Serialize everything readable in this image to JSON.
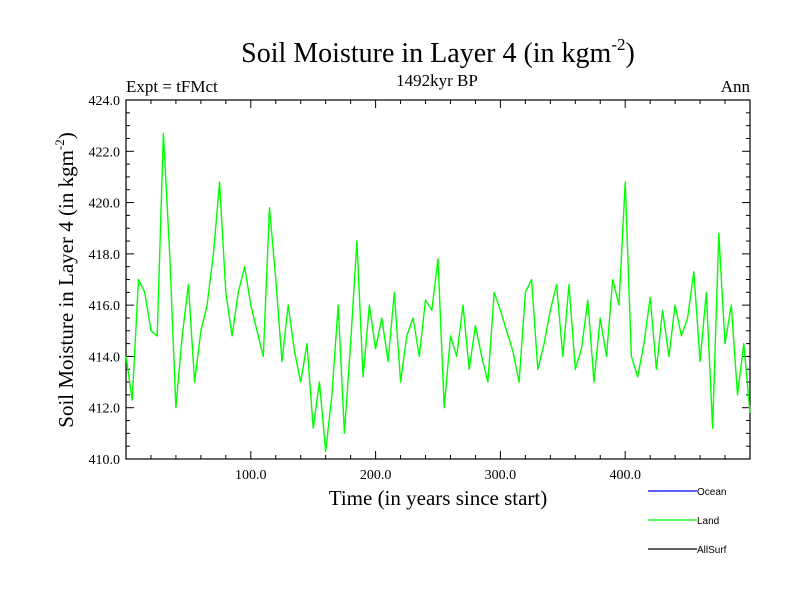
{
  "chart_data": {
    "type": "line",
    "title_main": "Soil Moisture in Layer 4 (in kgm",
    "title_exp": "-2",
    "title_close": ")",
    "subtitle": "1492kyr BP",
    "left_label": "Expt = tFMct",
    "right_label": "Ann",
    "xlabel": "Time (in years since start)",
    "ylabel_main": "Soil Moisture in Layer 4 (in kgm",
    "ylabel_exp": "-2",
    "ylabel_close": ")",
    "xlim": [
      0,
      500
    ],
    "ylim": [
      410,
      424
    ],
    "x_ticks": [
      100,
      200,
      300,
      400
    ],
    "x_tick_labels": [
      "100.0",
      "200.0",
      "300.0",
      "400.0"
    ],
    "y_ticks": [
      410,
      412,
      414,
      416,
      418,
      420,
      422,
      424
    ],
    "y_tick_labels": [
      "410.0",
      "412.0",
      "414.0",
      "416.0",
      "418.0",
      "420.0",
      "422.0",
      "424.0"
    ],
    "legend": [
      {
        "name": "Ocean",
        "color": "#0000ff"
      },
      {
        "name": "Land",
        "color": "#00ff00"
      },
      {
        "name": "AllSurf",
        "color": "#000000"
      }
    ],
    "series": [
      {
        "name": "Land",
        "color": "#00ff00",
        "x": [
          0,
          5,
          10,
          15,
          20,
          25,
          30,
          35,
          40,
          45,
          50,
          55,
          60,
          65,
          70,
          75,
          80,
          85,
          90,
          95,
          100,
          105,
          110,
          115,
          120,
          125,
          130,
          135,
          140,
          145,
          150,
          155,
          160,
          165,
          170,
          175,
          180,
          185,
          190,
          195,
          200,
          205,
          210,
          215,
          220,
          225,
          230,
          235,
          240,
          245,
          250,
          255,
          260,
          265,
          270,
          275,
          280,
          285,
          290,
          295,
          300,
          305,
          310,
          315,
          320,
          325,
          330,
          335,
          340,
          345,
          350,
          355,
          360,
          365,
          370,
          375,
          380,
          385,
          390,
          395,
          400,
          405,
          410,
          415,
          420,
          425,
          430,
          435,
          440,
          445,
          450,
          455,
          460,
          465,
          470,
          475,
          480,
          485,
          490,
          495,
          500
        ],
        "values": [
          414.0,
          412.3,
          417.0,
          416.5,
          415.0,
          414.8,
          422.7,
          418.0,
          412.0,
          414.8,
          416.8,
          413.0,
          415.0,
          416.0,
          418.0,
          420.8,
          416.5,
          414.8,
          416.5,
          417.5,
          416.0,
          415.0,
          414.0,
          419.8,
          417.0,
          413.8,
          416.0,
          414.2,
          413.0,
          414.5,
          411.2,
          413.0,
          410.3,
          412.5,
          416.0,
          411.0,
          414.5,
          418.5,
          413.2,
          416.0,
          414.3,
          415.5,
          413.8,
          416.5,
          413.0,
          414.8,
          415.5,
          414.0,
          416.2,
          415.8,
          417.8,
          412.0,
          414.8,
          414.0,
          416.0,
          413.5,
          415.2,
          414.0,
          413.0,
          416.5,
          415.8,
          415.0,
          414.2,
          413.0,
          416.5,
          417.0,
          413.5,
          414.5,
          415.8,
          416.8,
          414.0,
          416.8,
          413.5,
          414.3,
          416.2,
          413.0,
          415.5,
          414.0,
          417.0,
          416.0,
          420.8,
          414.0,
          413.2,
          414.5,
          416.3,
          413.5,
          415.8,
          414.0,
          416.0,
          414.8,
          415.5,
          417.3,
          413.8,
          416.5,
          411.2,
          418.8,
          414.5,
          416.0,
          412.5,
          414.5,
          411.8
        ]
      }
    ]
  }
}
